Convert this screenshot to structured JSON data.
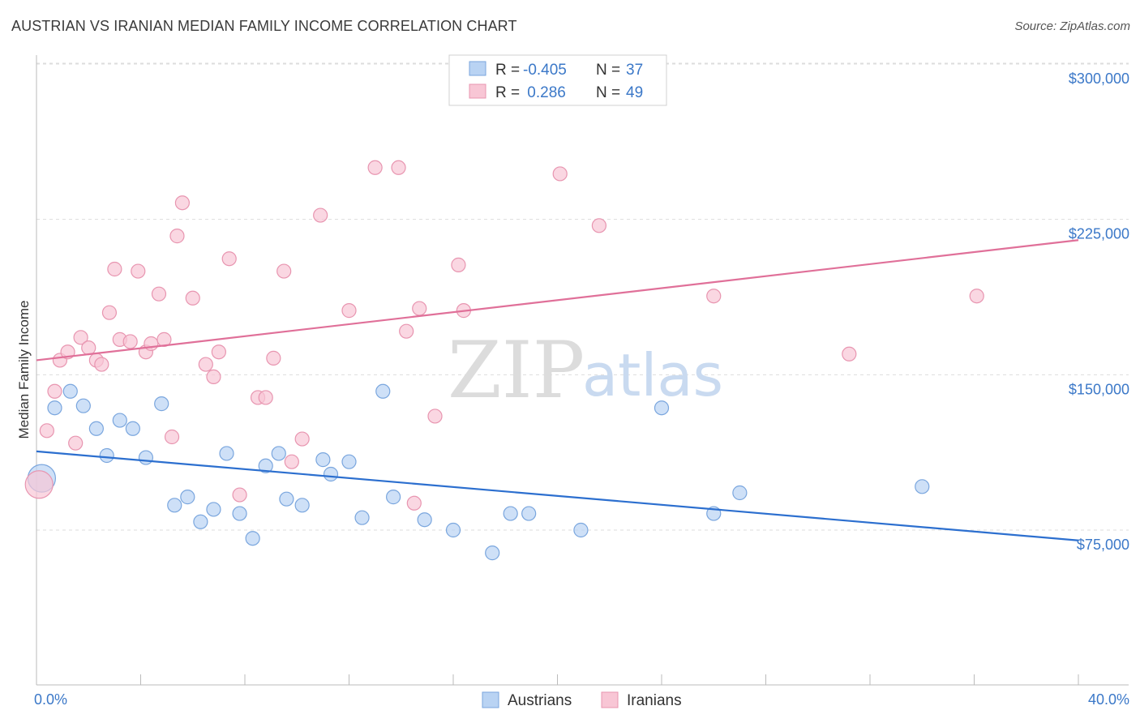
{
  "title": "AUSTRIAN VS IRANIAN MEDIAN FAMILY INCOME CORRELATION CHART",
  "source": "Source: ZipAtlas.com",
  "watermark": {
    "zip": "ZIP",
    "atlas": "atlas"
  },
  "colors": {
    "austrians_fill": "#b9d3f3",
    "austrians_stroke": "#7aa6de",
    "austrians_line": "#2c6fcf",
    "iranians_fill": "#f8c6d5",
    "iranians_stroke": "#e895b0",
    "iranians_line": "#e07099",
    "tick_label": "#3b78c8",
    "grid": "#dddddd"
  },
  "legend": {
    "rows": [
      {
        "r_label": "R =",
        "r_value": "-0.405",
        "n_label": "N =",
        "n_value": "37"
      },
      {
        "r_label": "R =",
        "r_value": " 0.286",
        "n_label": "N =",
        "n_value": "49"
      }
    ]
  },
  "bottom_legend": [
    "Austrians",
    "Iranians"
  ],
  "chart_data": {
    "type": "scatter",
    "xlabel": "",
    "ylabel": "Median Family Income",
    "xlim": [
      0,
      40
    ],
    "ylim": [
      0,
      310000
    ],
    "x_tick_labels": [
      "0.0%",
      "40.0%"
    ],
    "y_ticks": [
      75000,
      150000,
      225000,
      300000
    ],
    "y_tick_labels": [
      "$75,000",
      "$150,000",
      "$225,000",
      "$300,000"
    ],
    "grid": true,
    "legend_position": "top-center",
    "series": [
      {
        "name": "Austrians",
        "trend": {
          "x": [
            0,
            40
          ],
          "y": [
            113000,
            70000
          ]
        },
        "points": [
          {
            "x": 0.2,
            "y": 100000,
            "big": true
          },
          {
            "x": 0.7,
            "y": 134000
          },
          {
            "x": 1.3,
            "y": 142000
          },
          {
            "x": 1.8,
            "y": 135000
          },
          {
            "x": 2.3,
            "y": 124000
          },
          {
            "x": 2.7,
            "y": 111000
          },
          {
            "x": 3.2,
            "y": 128000
          },
          {
            "x": 3.7,
            "y": 124000
          },
          {
            "x": 4.2,
            "y": 110000
          },
          {
            "x": 4.8,
            "y": 136000
          },
          {
            "x": 5.3,
            "y": 87000
          },
          {
            "x": 5.8,
            "y": 91000
          },
          {
            "x": 6.3,
            "y": 79000
          },
          {
            "x": 6.8,
            "y": 85000
          },
          {
            "x": 7.3,
            "y": 112000
          },
          {
            "x": 7.8,
            "y": 83000
          },
          {
            "x": 8.3,
            "y": 71000
          },
          {
            "x": 8.8,
            "y": 106000
          },
          {
            "x": 9.3,
            "y": 112000
          },
          {
            "x": 9.6,
            "y": 90000
          },
          {
            "x": 10.2,
            "y": 87000
          },
          {
            "x": 11.0,
            "y": 109000
          },
          {
            "x": 11.3,
            "y": 102000
          },
          {
            "x": 12.0,
            "y": 108000
          },
          {
            "x": 12.5,
            "y": 81000
          },
          {
            "x": 13.3,
            "y": 142000
          },
          {
            "x": 13.7,
            "y": 91000
          },
          {
            "x": 14.9,
            "y": 80000
          },
          {
            "x": 16.0,
            "y": 75000
          },
          {
            "x": 17.5,
            "y": 64000
          },
          {
            "x": 18.2,
            "y": 83000
          },
          {
            "x": 18.9,
            "y": 83000
          },
          {
            "x": 20.9,
            "y": 75000
          },
          {
            "x": 24.0,
            "y": 134000
          },
          {
            "x": 26.0,
            "y": 83000
          },
          {
            "x": 27.0,
            "y": 93000
          },
          {
            "x": 34.0,
            "y": 96000
          }
        ]
      },
      {
        "name": "Iranians",
        "trend": {
          "x": [
            0,
            40
          ],
          "y": [
            157000,
            215000
          ]
        },
        "points": [
          {
            "x": 0.1,
            "y": 97000,
            "big": true
          },
          {
            "x": 0.4,
            "y": 123000
          },
          {
            "x": 0.7,
            "y": 142000
          },
          {
            "x": 0.9,
            "y": 157000
          },
          {
            "x": 1.2,
            "y": 161000
          },
          {
            "x": 1.5,
            "y": 117000
          },
          {
            "x": 1.7,
            "y": 168000
          },
          {
            "x": 2.0,
            "y": 163000
          },
          {
            "x": 2.3,
            "y": 157000
          },
          {
            "x": 2.5,
            "y": 155000
          },
          {
            "x": 2.8,
            "y": 180000
          },
          {
            "x": 3.0,
            "y": 201000
          },
          {
            "x": 3.2,
            "y": 167000
          },
          {
            "x": 3.6,
            "y": 166000
          },
          {
            "x": 3.9,
            "y": 200000
          },
          {
            "x": 4.2,
            "y": 161000
          },
          {
            "x": 4.4,
            "y": 165000
          },
          {
            "x": 4.7,
            "y": 189000
          },
          {
            "x": 4.9,
            "y": 167000
          },
          {
            "x": 5.2,
            "y": 120000
          },
          {
            "x": 5.4,
            "y": 217000
          },
          {
            "x": 5.6,
            "y": 233000
          },
          {
            "x": 6.0,
            "y": 187000
          },
          {
            "x": 6.5,
            "y": 155000
          },
          {
            "x": 6.8,
            "y": 149000
          },
          {
            "x": 7.0,
            "y": 161000
          },
          {
            "x": 7.4,
            "y": 206000
          },
          {
            "x": 7.8,
            "y": 92000
          },
          {
            "x": 8.5,
            "y": 139000
          },
          {
            "x": 8.8,
            "y": 139000
          },
          {
            "x": 9.1,
            "y": 158000
          },
          {
            "x": 9.5,
            "y": 200000
          },
          {
            "x": 9.8,
            "y": 108000
          },
          {
            "x": 10.2,
            "y": 119000
          },
          {
            "x": 10.9,
            "y": 227000
          },
          {
            "x": 12.0,
            "y": 181000
          },
          {
            "x": 13.0,
            "y": 250000
          },
          {
            "x": 13.9,
            "y": 250000
          },
          {
            "x": 14.2,
            "y": 171000
          },
          {
            "x": 14.5,
            "y": 88000
          },
          {
            "x": 14.7,
            "y": 182000
          },
          {
            "x": 15.3,
            "y": 130000
          },
          {
            "x": 16.2,
            "y": 203000
          },
          {
            "x": 16.4,
            "y": 181000
          },
          {
            "x": 20.1,
            "y": 247000
          },
          {
            "x": 21.6,
            "y": 222000
          },
          {
            "x": 26.0,
            "y": 188000
          },
          {
            "x": 31.2,
            "y": 160000
          },
          {
            "x": 36.1,
            "y": 188000
          }
        ]
      }
    ]
  }
}
